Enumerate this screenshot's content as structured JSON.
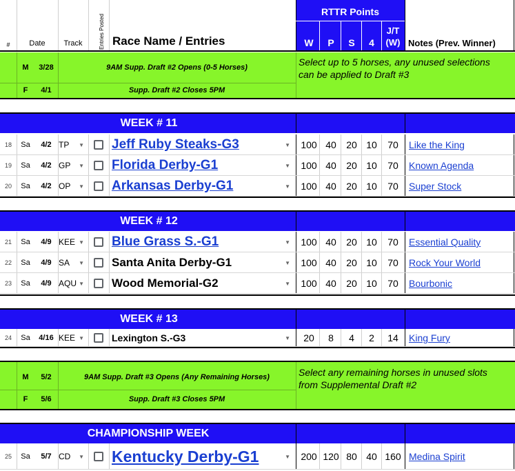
{
  "header": {
    "num": "#",
    "date": "Date",
    "track": "Track",
    "entries_posted": "Entries Posted",
    "race_name": "Race Name / Entries",
    "rttr_points": "RTTR Points",
    "w": "W",
    "p": "P",
    "s": "S",
    "four": "4",
    "jt_line1": "J/T",
    "jt_line2": "(W)",
    "notes": "Notes (Prev. Winner)"
  },
  "draft2": {
    "open": {
      "day": "M",
      "date": "3/28",
      "text": "9AM Supp. Draft #2 Opens (0-5 Horses)"
    },
    "close": {
      "day": "F",
      "date": "4/1",
      "text": "Supp. Draft #2 Closes 5PM"
    },
    "note_line1": "Select up to 5 horses, any unused selections",
    "note_line2": "can be applied to Draft #3"
  },
  "week11": {
    "title": "WEEK # 11",
    "races": [
      {
        "num": "18",
        "day": "Sa",
        "date": "4/2",
        "track": "TP",
        "name": "Jeff Ruby Steaks-G3",
        "w": "100",
        "p": "40",
        "s": "20",
        "four": "10",
        "jt": "70",
        "note": "Like the King"
      },
      {
        "num": "19",
        "day": "Sa",
        "date": "4/2",
        "track": "GP",
        "name": "Florida Derby-G1",
        "w": "100",
        "p": "40",
        "s": "20",
        "four": "10",
        "jt": "70",
        "note": "Known Agenda"
      },
      {
        "num": "20",
        "day": "Sa",
        "date": "4/2",
        "track": "OP",
        "name": "Arkansas Derby-G1",
        "w": "100",
        "p": "40",
        "s": "20",
        "four": "10",
        "jt": "70",
        "note": "Super Stock"
      }
    ]
  },
  "week12": {
    "title": "WEEK # 12",
    "races": [
      {
        "num": "21",
        "day": "Sa",
        "date": "4/9",
        "track": "KEE",
        "name": "Blue Grass S.-G1",
        "w": "100",
        "p": "40",
        "s": "20",
        "four": "10",
        "jt": "70",
        "note": "Essential Quality"
      },
      {
        "num": "22",
        "day": "Sa",
        "date": "4/9",
        "track": "SA",
        "name": "Santa Anita Derby-G1",
        "w": "100",
        "p": "40",
        "s": "20",
        "four": "10",
        "jt": "70",
        "note": "Rock Your World"
      },
      {
        "num": "23",
        "day": "Sa",
        "date": "4/9",
        "track": "AQU",
        "name": "Wood Memorial-G2",
        "w": "100",
        "p": "40",
        "s": "20",
        "four": "10",
        "jt": "70",
        "note": "Bourbonic"
      }
    ]
  },
  "week13": {
    "title": "WEEK # 13",
    "races": [
      {
        "num": "24",
        "day": "Sa",
        "date": "4/16",
        "track": "KEE",
        "name": "Lexington S.-G3",
        "w": "20",
        "p": "8",
        "s": "4",
        "four": "2",
        "jt": "14",
        "note": "King Fury"
      }
    ]
  },
  "draft3": {
    "open": {
      "day": "M",
      "date": "5/2",
      "text": "9AM Supp. Draft #3 Opens (Any Remaining Horses)"
    },
    "close": {
      "day": "F",
      "date": "5/6",
      "text": "Supp. Draft #3 Closes 5PM"
    },
    "note_line1": "Select any remaining horses in unused slots",
    "note_line2": "from Supplemental Draft #2"
  },
  "championship": {
    "title": "CHAMPIONSHIP WEEK",
    "races": [
      {
        "num": "25",
        "day": "Sa",
        "date": "5/7",
        "track": "CD",
        "name": "Kentucky Derby-G1",
        "w": "200",
        "p": "120",
        "s": "80",
        "four": "40",
        "jt": "160",
        "note": "Medina Spirit"
      }
    ]
  },
  "colors": {
    "week_band": "#1f0ff5",
    "draft_band": "#87f52a",
    "link": "#1a3fd1"
  }
}
